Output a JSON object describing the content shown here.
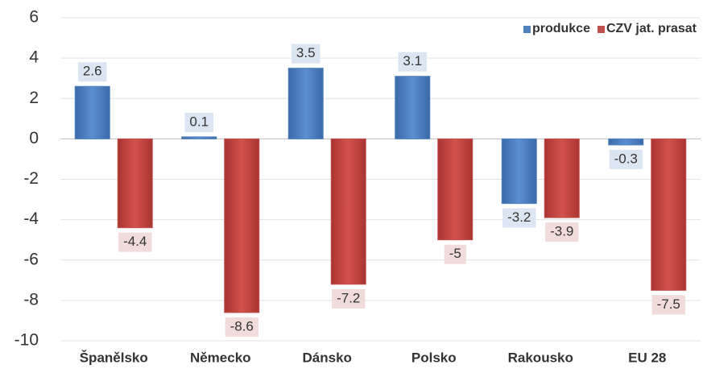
{
  "chart_data": {
    "type": "bar",
    "categories": [
      "Španělsko",
      "Německo",
      "Dánsko",
      "Polsko",
      "Rakousko",
      "EU 28"
    ],
    "series": [
      {
        "name": "produkce",
        "color": "#4f81bd",
        "values": [
          2.6,
          0.1,
          3.5,
          3.1,
          -3.2,
          -0.3
        ]
      },
      {
        "name": "CZV jat. prasat",
        "color": "#c0504d",
        "values": [
          -4.4,
          -8.6,
          -7.2,
          -5,
          -3.9,
          -7.5
        ]
      }
    ],
    "ylim": [
      -10,
      6
    ],
    "yticks": [
      -10,
      -8,
      -6,
      -4,
      -2,
      0,
      2,
      4,
      6
    ],
    "grid": true,
    "legend": "top-right"
  }
}
